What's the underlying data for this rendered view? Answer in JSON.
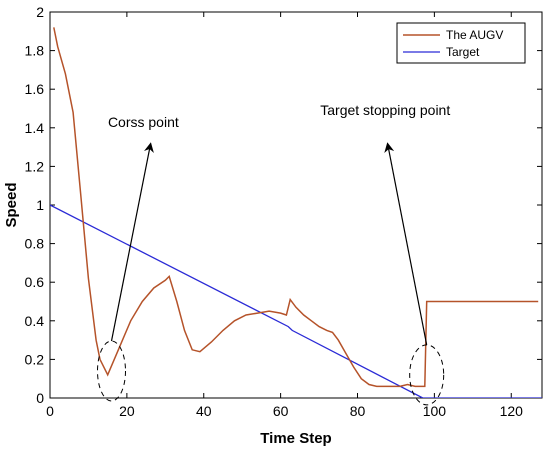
{
  "chart_data": {
    "type": "line",
    "xlabel": "Time Step",
    "ylabel": "Speed",
    "xlim": [
      0,
      128
    ],
    "ylim": [
      0,
      2
    ],
    "xticks": [
      "0",
      "20",
      "40",
      "60",
      "80",
      "100",
      "120"
    ],
    "yticks": [
      "0",
      "0.2",
      "0.4",
      "0.6",
      "0.8",
      "1",
      "1.2",
      "1.4",
      "1.6",
      "1.8",
      "2"
    ],
    "legend_position": "top-right",
    "series": [
      {
        "name": "The AUGV",
        "color": "#b5532a",
        "x": [
          1,
          2,
          4,
          6,
          8,
          10,
          12,
          13,
          15,
          18,
          21,
          24,
          27,
          30,
          31,
          33,
          35,
          37,
          39,
          42,
          45,
          48,
          51,
          54,
          57,
          60,
          61.5,
          62.5,
          64,
          66,
          68,
          70,
          72,
          73.5,
          75,
          77,
          79,
          81,
          83,
          85,
          88,
          91,
          93,
          95,
          96.5,
          97.5,
          98,
          99,
          100,
          104,
          110,
          115,
          120,
          125,
          127
        ],
        "y": [
          1.92,
          1.82,
          1.68,
          1.48,
          1.05,
          0.62,
          0.3,
          0.2,
          0.12,
          0.26,
          0.4,
          0.5,
          0.57,
          0.61,
          0.63,
          0.5,
          0.35,
          0.25,
          0.24,
          0.29,
          0.35,
          0.4,
          0.43,
          0.44,
          0.45,
          0.44,
          0.43,
          0.51,
          0.47,
          0.43,
          0.4,
          0.37,
          0.35,
          0.34,
          0.3,
          0.23,
          0.16,
          0.1,
          0.07,
          0.06,
          0.06,
          0.06,
          0.07,
          0.06,
          0.06,
          0.06,
          0.5,
          0.5,
          0.5,
          0.5,
          0.5,
          0.5,
          0.5,
          0.5,
          0.5
        ]
      },
      {
        "name": "Target",
        "color": "#2b2bd6",
        "x": [
          0,
          62,
          63,
          97,
          98,
          128
        ],
        "y": [
          1.0,
          0.37,
          0.35,
          0.0,
          0.0,
          0.0
        ]
      }
    ],
    "annotations": [
      {
        "text": "Corss point",
        "target": [
          16,
          0.14
        ],
        "label_at": [
          26,
          1.3
        ]
      },
      {
        "text": "Target stopping point",
        "target": [
          98,
          0.12
        ],
        "label_at": [
          88,
          1.3
        ]
      }
    ]
  }
}
